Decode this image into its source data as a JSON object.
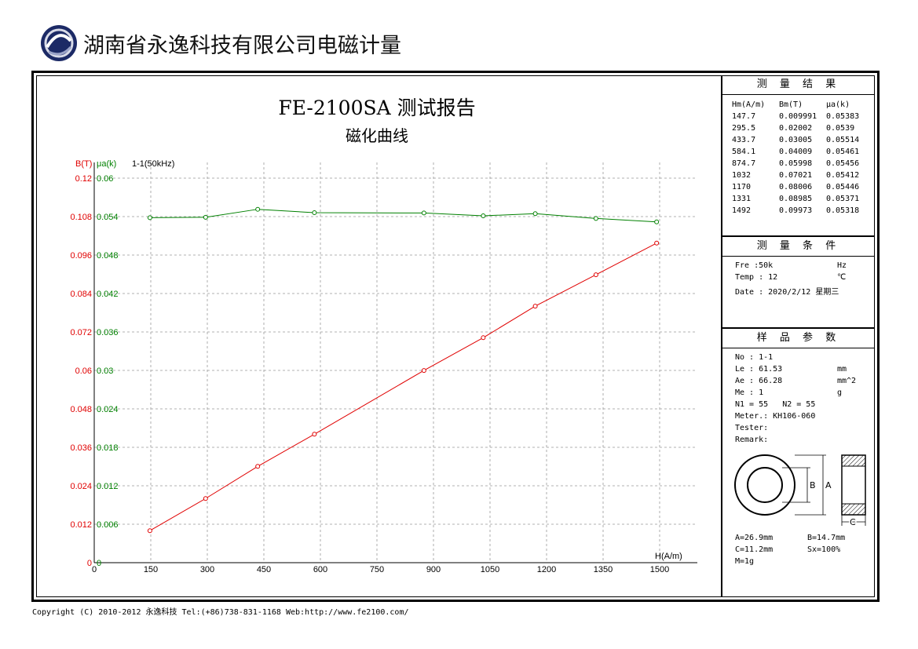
{
  "company_name": "湖南省永逸科技有限公司电磁计量",
  "report_title": "FE-2100SA 测试报告",
  "report_subtitle": "磁化曲线",
  "chart_data": {
    "type": "line",
    "x": [
      147.7,
      295.5,
      433.7,
      584.1,
      874.7,
      1032,
      1170,
      1331,
      1492
    ],
    "series": [
      {
        "name": "B(T)",
        "axis": "left",
        "color": "#e00000",
        "values": [
          0.009991,
          0.02002,
          0.03005,
          0.04009,
          0.05998,
          0.07021,
          0.08006,
          0.08985,
          0.09973
        ]
      },
      {
        "name": "μa(k)",
        "axis": "right",
        "color": "#008000",
        "values": [
          0.05383,
          0.0539,
          0.05514,
          0.05461,
          0.05456,
          0.05412,
          0.05446,
          0.05371,
          0.05318
        ]
      }
    ],
    "sample_label": "1-1(50kHz)",
    "xlabel": "H(A/m)",
    "ylabel_left": "B(T)",
    "ylabel_right": "μa(k)",
    "xlim": [
      0,
      1600
    ],
    "ylim_left": [
      0,
      0.12
    ],
    "ylim_right": [
      0,
      0.06
    ],
    "x_ticks": [
      "0",
      "150",
      "300",
      "450",
      "600",
      "750",
      "900",
      "1050",
      "1200",
      "1350",
      "1500"
    ],
    "y_left_ticks": [
      "0",
      "0.012",
      "0.024",
      "0.036",
      "0.048",
      "0.06",
      "0.072",
      "0.084",
      "0.096",
      "0.108",
      "0.12"
    ],
    "y_right_ticks": [
      "0",
      "0.006",
      "0.012",
      "0.018",
      "0.024",
      "0.03",
      "0.036",
      "0.042",
      "0.048",
      "0.054",
      "0.06"
    ],
    "grid": true,
    "colors": {
      "left_axis": "#e00000",
      "right_axis": "#008000",
      "grid": "#999999"
    }
  },
  "results": {
    "heading": "测 量 结 果",
    "columns": [
      "Hm(A/m)",
      "Bm(T)",
      "μa(k)"
    ],
    "rows": [
      [
        "147.7",
        "0.009991",
        "0.05383"
      ],
      [
        "295.5",
        "0.02002",
        "0.0539"
      ],
      [
        "433.7",
        "0.03005",
        "0.05514"
      ],
      [
        "584.1",
        "0.04009",
        "0.05461"
      ],
      [
        "874.7",
        "0.05998",
        "0.05456"
      ],
      [
        "1032",
        "0.07021",
        "0.05412"
      ],
      [
        "1170",
        "0.08006",
        "0.05446"
      ],
      [
        "1331",
        "0.08985",
        "0.05371"
      ],
      [
        "1492",
        "0.09973",
        "0.05318"
      ]
    ]
  },
  "conditions": {
    "heading": "测 量 条 件",
    "fre_label": "Fre :50k",
    "fre_unit": "Hz",
    "temp_label": "Temp : 12",
    "temp_unit": "℃",
    "date_label": "Date : 2020/2/12 星期三"
  },
  "sample": {
    "heading": "样 品 参 数",
    "no": "No : 1-1",
    "le": "Le : 61.53",
    "le_unit": "mm",
    "ae": "Ae : 66.28",
    "ae_unit": "mm^2",
    "me": "Me : 1",
    "me_unit": "g",
    "n": "N1 = 55   N2 = 55",
    "meter": "Meter.: KH106-060",
    "tester": "Tester:",
    "remark": "Remark:",
    "dim_b_label": "B",
    "dim_a_label": "A",
    "dim_c_label": "C",
    "dim_a": "A=26.9mm",
    "dim_b": "B=14.7mm",
    "dim_c": "C=11.2mm",
    "sx": "Sx=100%",
    "mass": "M=1g"
  },
  "footer": "Copyright (C) 2010-2012 永逸科技  Tel:(+86)738-831-1168  Web:http://www.fe2100.com/"
}
